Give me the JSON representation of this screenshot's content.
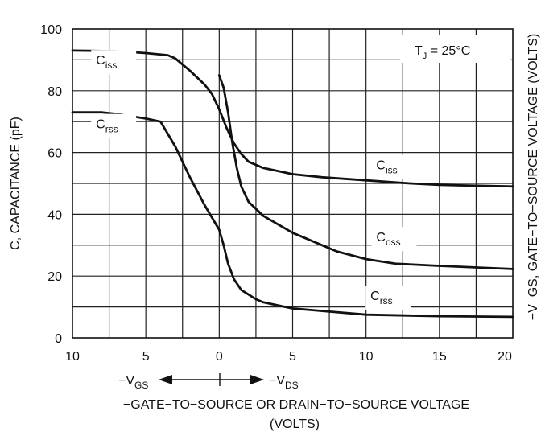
{
  "chart_data": {
    "type": "line",
    "x_tick_labels": [
      "10",
      "5",
      "0",
      "5",
      "10",
      "15",
      "20"
    ],
    "y_tick_labels": [
      "0",
      "20",
      "40",
      "60",
      "80",
      "100"
    ],
    "ylim": [
      0,
      100
    ],
    "xlim": [
      -10,
      20
    ],
    "grid": true,
    "ylabel": "C, CAPACITANCE (pF)",
    "right_axis_label": "−V_GS, GATE−TO−SOURCE VOLTAGE (VOLTS)",
    "xlabel_line1": "−GATE−TO−SOURCE OR DRAIN−TO−SOURCE VOLTAGE",
    "xlabel_line2": "(VOLTS)",
    "left_direction_label": "−V",
    "left_direction_sub": "GS",
    "right_direction_label": "−V",
    "right_direction_sub": "DS",
    "condition_label_main": "T",
    "condition_label_sub": "J",
    "condition_label_rest": " = 25°C",
    "series": [
      {
        "name_main": "C",
        "name_sub": "iss",
        "points": [
          [
            -10,
            93
          ],
          [
            -7,
            92.8
          ],
          [
            -5,
            92.2
          ],
          [
            -3.5,
            91.5
          ],
          [
            -3,
            90.5
          ],
          [
            -2,
            86.5
          ],
          [
            -1,
            82
          ],
          [
            -0.5,
            79
          ],
          [
            0,
            74
          ],
          [
            0.5,
            68
          ],
          [
            1,
            63
          ],
          [
            1.5,
            59.5
          ],
          [
            2,
            57
          ],
          [
            3,
            55
          ],
          [
            5,
            53
          ],
          [
            7,
            52
          ],
          [
            10,
            51
          ],
          [
            13,
            50
          ],
          [
            15,
            49.5
          ],
          [
            17,
            49.3
          ],
          [
            20,
            49
          ]
        ]
      },
      {
        "name_main": "C",
        "name_sub": "rss",
        "points": [
          [
            -10,
            73
          ],
          [
            -8,
            73
          ],
          [
            -7,
            72.5
          ],
          [
            -5,
            71
          ],
          [
            -4,
            70
          ],
          [
            -3,
            62
          ],
          [
            -2,
            52
          ],
          [
            -1,
            43
          ],
          [
            0,
            35
          ],
          [
            0.3,
            30
          ],
          [
            0.6,
            24
          ],
          [
            1,
            19
          ],
          [
            1.5,
            15.5
          ],
          [
            2,
            14
          ],
          [
            2.5,
            12.5
          ],
          [
            3,
            11.5
          ],
          [
            5,
            9.5
          ],
          [
            10,
            7.5
          ],
          [
            15,
            7
          ],
          [
            20,
            6.8
          ]
        ]
      },
      {
        "name_main": "C",
        "name_sub": "oss",
        "points": [
          [
            0,
            85
          ],
          [
            0.3,
            81
          ],
          [
            0.6,
            73
          ],
          [
            0.9,
            63
          ],
          [
            1.2,
            55
          ],
          [
            1.5,
            49
          ],
          [
            2,
            44
          ],
          [
            3,
            39.5
          ],
          [
            5,
            34
          ],
          [
            7,
            30
          ],
          [
            8,
            28
          ],
          [
            10,
            25.5
          ],
          [
            12,
            24
          ],
          [
            15,
            23.3
          ],
          [
            20,
            22.3
          ]
        ]
      }
    ],
    "curve_labels": [
      {
        "main": "C",
        "sub": "iss",
        "x": -8.4,
        "y": 88.5
      },
      {
        "main": "C",
        "sub": "rss",
        "x": -8.4,
        "y": 67.8
      },
      {
        "main": "C",
        "sub": "iss",
        "x": 10.7,
        "y": 54.5
      },
      {
        "main": "C",
        "sub": "oss",
        "x": 10.7,
        "y": 31.2
      },
      {
        "main": "C",
        "sub": "rss",
        "x": 10.3,
        "y": 12.2
      }
    ],
    "colors": {
      "line": "#111111",
      "grid": "#222222",
      "background": "#ffffff"
    }
  }
}
